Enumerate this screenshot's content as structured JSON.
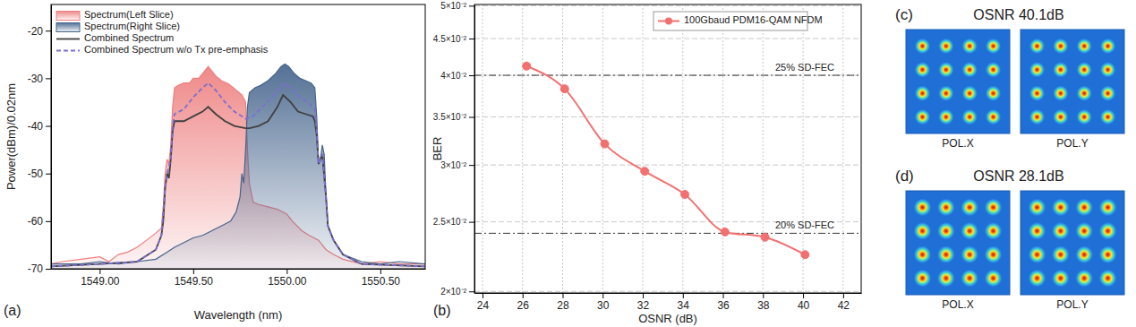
{
  "chart_data": [
    {
      "type": "line",
      "annotations": [
        {
          "text": "(a)"
        }
      ],
      "x_label": "Wavelength (nm)",
      "y_label": "Power(dBm)/0.02nm",
      "xlim": [
        1548.74,
        1550.74
      ],
      "xticks": [
        {
          "value": 1549,
          "label": "1549.00"
        },
        {
          "value": 1549.5,
          "label": "1549.50"
        },
        {
          "value": 1550,
          "label": "1550.00"
        },
        {
          "value": 1550.5,
          "label": "1550.50"
        }
      ],
      "ylim": [
        -70,
        -14.5
      ],
      "yticks": [
        -70,
        -60,
        -50,
        -40,
        -30,
        -20
      ],
      "grid": false,
      "legend": "top-left",
      "series": [
        {
          "name": "Spectrum(Left Slice)",
          "type": "area",
          "color": "#ee7f7f",
          "x": [
            1548.74,
            1548.8,
            1548.9,
            1549.0,
            1549.05,
            1549.1,
            1549.15,
            1549.2,
            1549.25,
            1549.3,
            1549.33,
            1549.34,
            1549.35,
            1549.36,
            1549.37,
            1549.38,
            1549.39,
            1549.4,
            1549.42,
            1549.45,
            1549.48,
            1549.5,
            1549.53,
            1549.55,
            1549.57,
            1549.58,
            1549.6,
            1549.62,
            1549.65,
            1549.68,
            1549.7,
            1549.73,
            1549.76,
            1549.78,
            1549.79,
            1549.8,
            1549.82,
            1549.85,
            1549.9,
            1549.95,
            1550.0,
            1550.03,
            1550.08,
            1550.12,
            1550.17,
            1550.21,
            1550.25,
            1550.3,
            1550.4,
            1550.5,
            1550.6,
            1550.74
          ],
          "values": [
            -69,
            -68.5,
            -68,
            -67.5,
            -68.5,
            -67,
            -66.5,
            -65.5,
            -64,
            -62.5,
            -61.5,
            -57,
            -50,
            -47,
            -48,
            -44,
            -36,
            -32,
            -31.5,
            -31,
            -31,
            -30,
            -30,
            -29,
            -28,
            -27.5,
            -28.5,
            -29.5,
            -30.5,
            -31,
            -31.5,
            -32.5,
            -33.5,
            -35,
            -45,
            -52,
            -56,
            -56.5,
            -57,
            -57.5,
            -58.5,
            -60,
            -62,
            -63,
            -64,
            -66,
            -67,
            -68,
            -69,
            -68.5,
            -69,
            -69
          ]
        },
        {
          "name": "Spectrum(Right Slice)",
          "type": "area",
          "color": "#45648c",
          "x": [
            1548.74,
            1548.9,
            1549.0,
            1549.1,
            1549.2,
            1549.3,
            1549.36,
            1549.4,
            1549.45,
            1549.5,
            1549.55,
            1549.6,
            1549.65,
            1549.7,
            1549.73,
            1549.75,
            1549.76,
            1549.77,
            1549.78,
            1549.79,
            1549.8,
            1549.83,
            1549.86,
            1549.9,
            1549.94,
            1549.97,
            1549.99,
            1550.01,
            1550.04,
            1550.07,
            1550.1,
            1550.13,
            1550.15,
            1550.16,
            1550.17,
            1550.18,
            1550.19,
            1550.2,
            1550.21,
            1550.22,
            1550.25,
            1550.3,
            1550.4,
            1550.5,
            1550.6,
            1550.74
          ],
          "values": [
            -69,
            -69,
            -68.5,
            -69,
            -68.5,
            -68,
            -66.5,
            -65.5,
            -64.5,
            -63.5,
            -63,
            -62,
            -61,
            -60,
            -58,
            -55,
            -50,
            -52,
            -45,
            -36,
            -33,
            -32,
            -31.5,
            -30.5,
            -29,
            -27.5,
            -27,
            -27.5,
            -29,
            -30,
            -30.5,
            -31,
            -32,
            -38,
            -48,
            -47,
            -44,
            -46,
            -55,
            -61,
            -64,
            -67,
            -68.5,
            -69,
            -68.5,
            -69
          ]
        },
        {
          "name": "Combined Spectrum",
          "type": "line",
          "color": "#404040",
          "line_style": "solid",
          "x": [
            1548.74,
            1549.0,
            1549.2,
            1549.3,
            1549.33,
            1549.34,
            1549.35,
            1549.36,
            1549.37,
            1549.38,
            1549.39,
            1549.4,
            1549.45,
            1549.5,
            1549.55,
            1549.58,
            1549.62,
            1549.67,
            1549.72,
            1549.78,
            1549.8,
            1549.85,
            1549.9,
            1549.95,
            1549.98,
            1550.02,
            1550.06,
            1550.1,
            1550.14,
            1550.15,
            1550.16,
            1550.17,
            1550.19,
            1550.21,
            1550.22,
            1550.25,
            1550.3,
            1550.4,
            1550.74
          ],
          "values": [
            -69.5,
            -69,
            -68.5,
            -66,
            -63,
            -60,
            -53,
            -50,
            -51,
            -47,
            -41,
            -39,
            -39,
            -38,
            -37,
            -36,
            -37.5,
            -39,
            -40,
            -40.5,
            -40.5,
            -40,
            -39,
            -36,
            -33.5,
            -35,
            -37,
            -37.5,
            -38,
            -39,
            -42,
            -48,
            -46,
            -55,
            -61,
            -64,
            -67,
            -69,
            -69.5
          ]
        },
        {
          "name": "Combined Spectrum w/o Tx pre-emphasis",
          "type": "line",
          "color": "#7b6fd0",
          "line_style": "dashed",
          "x": [
            1548.74,
            1549.0,
            1549.2,
            1549.3,
            1549.33,
            1549.35,
            1549.36,
            1549.38,
            1549.39,
            1549.4,
            1549.45,
            1549.5,
            1549.55,
            1549.58,
            1549.62,
            1549.67,
            1549.72,
            1549.78,
            1549.82,
            1549.87,
            1549.92,
            1549.96,
            1549.99,
            1550.03,
            1550.07,
            1550.11,
            1550.15,
            1550.16,
            1550.17,
            1550.19,
            1550.21,
            1550.22,
            1550.25,
            1550.3,
            1550.4,
            1550.74
          ],
          "values": [
            -69.5,
            -69,
            -68.5,
            -66,
            -63,
            -53,
            -50,
            -47,
            -40,
            -37.5,
            -36.5,
            -34,
            -32,
            -31,
            -32.5,
            -35,
            -37,
            -38.5,
            -38,
            -36,
            -34,
            -32,
            -31,
            -32.5,
            -34,
            -35,
            -36.5,
            -41,
            -48,
            -46,
            -55,
            -61,
            -64,
            -67,
            -69,
            -69.5
          ]
        }
      ]
    },
    {
      "type": "line",
      "annotations": [
        {
          "text": "(b)"
        },
        {
          "text": "25% SD-FEC",
          "y": 0.04
        },
        {
          "text": "20% SD-FEC",
          "y": 0.0241
        }
      ],
      "x_label": "OSNR (dB)",
      "y_label": "BER",
      "log": "y",
      "xlim": [
        23.6,
        42.9
      ],
      "xticks": [
        24,
        26,
        28,
        30,
        32,
        34,
        36,
        38,
        40,
        42
      ],
      "ylim": [
        0.0199,
        0.0502
      ],
      "yticks": [
        {
          "value": 0.02,
          "label": "2×10⁻²"
        },
        {
          "value": 0.025,
          "label": "2.5×10⁻²"
        },
        {
          "value": 0.03,
          "label": "3×10⁻²"
        },
        {
          "value": 0.035,
          "label": "3.5×10⁻²"
        },
        {
          "value": 0.04,
          "label": "4×10⁻²"
        },
        {
          "value": 0.045,
          "label": "4.5×10⁻²"
        },
        {
          "value": 0.05,
          "label": "5×10⁻²"
        }
      ],
      "grid": true,
      "legend": "top-right",
      "series": [
        {
          "name": "100Gbaud PDM16-QAM NFDM",
          "color": "#f27070",
          "marker": "circle",
          "line_style": "solid",
          "x": [
            26.2,
            28.1,
            30.1,
            32.1,
            34.1,
            36.1,
            38.1,
            40.1
          ],
          "values": [
            0.0412,
            0.0383,
            0.0321,
            0.0294,
            0.0273,
            0.0242,
            0.0238,
            0.0225
          ]
        }
      ]
    },
    {
      "type": "constellation",
      "annotations": [
        {
          "text": "(c)"
        }
      ],
      "title": "OSNR 40.1dB",
      "xlim": [
        -4.4,
        4.4
      ],
      "ylim": [
        -4.4,
        4.4
      ],
      "tick_labels": false,
      "series": [
        {
          "name": "POL.X",
          "x": [
            -3,
            -1,
            1,
            3,
            -3,
            -1,
            1,
            3,
            -3,
            -1,
            1,
            3,
            -3,
            -1,
            1,
            3
          ],
          "values": [
            3,
            3,
            3,
            3,
            1,
            1,
            1,
            1,
            -1,
            -1,
            -1,
            -1,
            -3,
            -3,
            -3,
            -3
          ],
          "spread": 0.3
        },
        {
          "name": "POL.Y",
          "x": [
            -3,
            -1,
            1,
            3,
            -3,
            -1,
            1,
            3,
            -3,
            -1,
            1,
            3,
            -3,
            -1,
            1,
            3
          ],
          "values": [
            3,
            3,
            3,
            3,
            1,
            1,
            1,
            1,
            -1,
            -1,
            -1,
            -1,
            -3,
            -3,
            -3,
            -3
          ],
          "spread": 0.3
        }
      ]
    },
    {
      "type": "constellation",
      "annotations": [
        {
          "text": "(d)"
        }
      ],
      "title": "OSNR 28.1dB",
      "xlim": [
        -4.4,
        4.4
      ],
      "ylim": [
        -4.4,
        4.4
      ],
      "tick_labels": false,
      "series": [
        {
          "name": "POL.X",
          "x": [
            -3,
            -1,
            1,
            3,
            -3,
            -1,
            1,
            3,
            -3,
            -1,
            1,
            3,
            -3,
            -1,
            1,
            3
          ],
          "values": [
            3,
            3,
            3,
            3,
            1,
            1,
            1,
            1,
            -1,
            -1,
            -1,
            -1,
            -3,
            -3,
            -3,
            -3
          ],
          "spread": 0.34
        },
        {
          "name": "POL.Y",
          "x": [
            -3,
            -1,
            1,
            3,
            -3,
            -1,
            1,
            3,
            -3,
            -1,
            1,
            3,
            -3,
            -1,
            1,
            3
          ],
          "values": [
            3,
            3,
            3,
            3,
            1,
            1,
            1,
            1,
            -1,
            -1,
            -1,
            -1,
            -3,
            -3,
            -3,
            -3
          ],
          "spread": 0.34
        }
      ]
    }
  ]
}
